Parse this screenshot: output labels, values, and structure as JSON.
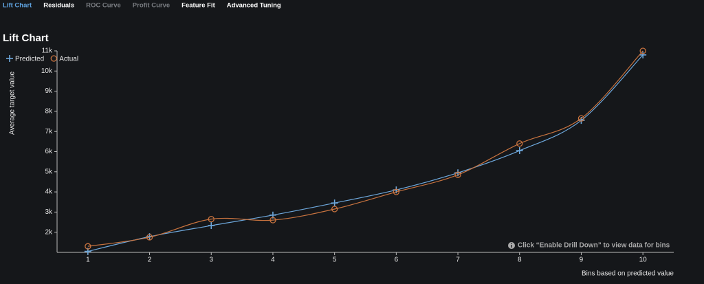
{
  "tabs": [
    "Lift Chart",
    "Residuals",
    "ROC Curve",
    "Profit Curve",
    "Feature Fit",
    "Advanced Tuning"
  ],
  "chart_data": {
    "type": "line",
    "title": "Lift Chart",
    "y_label": "Average target value",
    "x_label": "Bins based on predicted value",
    "note": "Click “Enable Drill Down” to view data for bins",
    "x": [
      1,
      2,
      3,
      4,
      5,
      6,
      7,
      8,
      9,
      10
    ],
    "series": [
      {
        "name": "Predicted",
        "color": "#6ea8dc",
        "marker": "plus",
        "values": [
          1050,
          1780,
          2330,
          2850,
          3450,
          4100,
          4950,
          6050,
          7550,
          10800
        ]
      },
      {
        "name": "Actual",
        "color": "#c8733f",
        "marker": "circle",
        "values": [
          1300,
          1750,
          2650,
          2600,
          3150,
          4000,
          4850,
          6400,
          7650,
          11000
        ]
      }
    ],
    "xlim": [
      0.5,
      10.5
    ],
    "xticks": [
      1,
      2,
      3,
      4,
      5,
      6,
      7,
      8,
      9,
      10
    ],
    "ylim": [
      1000,
      11000
    ],
    "yticks": [
      {
        "value": 2000,
        "label": "2k"
      },
      {
        "value": 3000,
        "label": "3k"
      },
      {
        "value": 4000,
        "label": "4k"
      },
      {
        "value": 5000,
        "label": "5k"
      },
      {
        "value": 6000,
        "label": "6k"
      },
      {
        "value": 7000,
        "label": "7k"
      },
      {
        "value": 8000,
        "label": "8k"
      },
      {
        "value": 9000,
        "label": "9k"
      },
      {
        "value": 10000,
        "label": "10k"
      },
      {
        "value": 11000,
        "label": "11k"
      }
    ],
    "legend": "top-left",
    "smooth": true
  }
}
